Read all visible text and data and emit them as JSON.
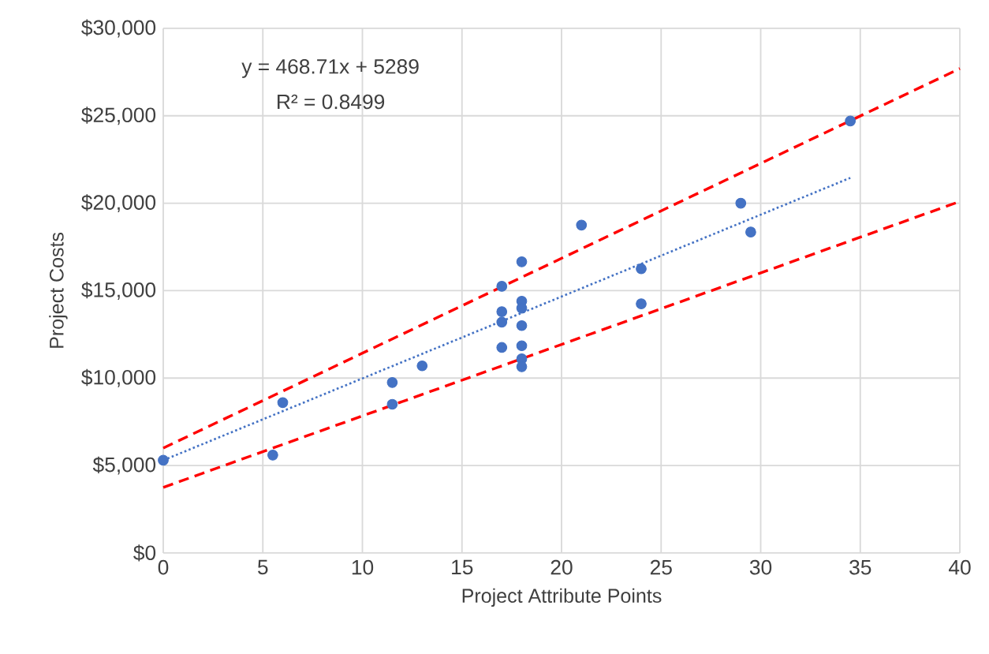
{
  "chart_data": {
    "type": "scatter",
    "xlabel": "Project Attribute Points",
    "ylabel": "Project Costs",
    "annotations": [
      "y = 468.71x + 5289",
      "R² = 0.8499"
    ],
    "xlim": [
      0,
      40
    ],
    "xticks": [
      0,
      5,
      10,
      15,
      20,
      25,
      30,
      35,
      40
    ],
    "ylim": [
      0,
      30000
    ],
    "yticks": [
      {
        "value": 0,
        "label": "$0"
      },
      {
        "value": 5000,
        "label": "$5,000"
      },
      {
        "value": 10000,
        "label": "$10,000"
      },
      {
        "value": 15000,
        "label": "$15,000"
      },
      {
        "value": 20000,
        "label": "$20,000"
      },
      {
        "value": 25000,
        "label": "$25,000"
      },
      {
        "value": 30000,
        "label": "$30,000"
      }
    ],
    "grid": true,
    "series": [
      {
        "type": "scatter",
        "color": "#4472c4",
        "marker": "circle",
        "x": [
          0,
          5.5,
          6,
          11.5,
          11.5,
          13,
          17,
          17,
          17,
          17,
          18,
          18,
          18,
          18,
          18,
          18,
          18,
          21,
          24,
          24,
          29,
          29.5,
          34.5
        ],
        "values": [
          5300,
          5600,
          8600,
          9750,
          8500,
          10700,
          15250,
          13800,
          13200,
          11750,
          16650,
          14400,
          14000,
          13000,
          11850,
          11100,
          10650,
          18750,
          16250,
          14250,
          20000,
          18350,
          24700
        ]
      },
      {
        "type": "line",
        "color": "#4472c4",
        "marker": "none",
        "line_style": "dotted",
        "x": [
          0,
          34.5
        ],
        "values": [
          5300,
          21450
        ]
      },
      {
        "type": "line",
        "color": "#ff0000",
        "marker": "none",
        "line_style": "dashed",
        "x": [
          0,
          40
        ],
        "values": [
          6000,
          27700
        ]
      },
      {
        "type": "line",
        "color": "#ff0000",
        "marker": "none",
        "line_style": "dashed",
        "x": [
          0,
          40
        ],
        "values": [
          3750,
          20100
        ]
      }
    ]
  }
}
